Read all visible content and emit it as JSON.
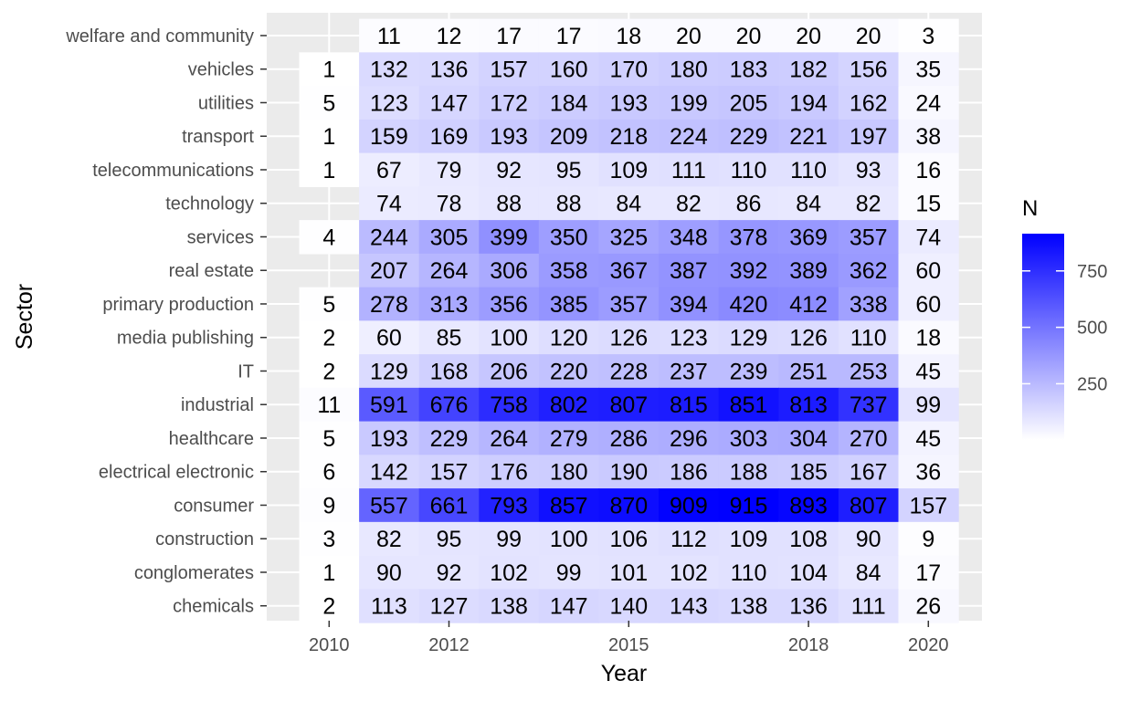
{
  "chart_data": {
    "type": "heatmap",
    "xlabel": "Year",
    "ylabel": "Sector",
    "x_ticks": [
      "2010",
      "2012",
      "2015",
      "2018",
      "2020"
    ],
    "x": [
      2010,
      2011,
      2012,
      2013,
      2014,
      2015,
      2016,
      2017,
      2018,
      2019,
      2020
    ],
    "categories": [
      "welfare and community",
      "vehicles",
      "utilities",
      "transport",
      "telecommunications",
      "technology",
      "services",
      "real estate",
      "primary production",
      "media publishing",
      "IT",
      "industrial",
      "healthcare",
      "electrical electronic",
      "consumer",
      "construction",
      "conglomerates",
      "chemicals"
    ],
    "values": [
      [
        null,
        11,
        12,
        17,
        17,
        18,
        20,
        20,
        20,
        20,
        3
      ],
      [
        1,
        132,
        136,
        157,
        160,
        170,
        180,
        183,
        182,
        156,
        35
      ],
      [
        5,
        123,
        147,
        172,
        184,
        193,
        199,
        205,
        194,
        162,
        24
      ],
      [
        1,
        159,
        169,
        193,
        209,
        218,
        224,
        229,
        221,
        197,
        38
      ],
      [
        1,
        67,
        79,
        92,
        95,
        109,
        111,
        110,
        110,
        93,
        16
      ],
      [
        null,
        74,
        78,
        88,
        88,
        84,
        82,
        86,
        84,
        82,
        15
      ],
      [
        4,
        244,
        305,
        399,
        350,
        325,
        348,
        378,
        369,
        357,
        74
      ],
      [
        null,
        207,
        264,
        306,
        358,
        367,
        387,
        392,
        389,
        362,
        60
      ],
      [
        5,
        278,
        313,
        356,
        385,
        357,
        394,
        420,
        412,
        338,
        60
      ],
      [
        2,
        60,
        85,
        100,
        120,
        126,
        123,
        129,
        126,
        110,
        18
      ],
      [
        2,
        129,
        168,
        206,
        220,
        228,
        237,
        239,
        251,
        253,
        45
      ],
      [
        11,
        591,
        676,
        758,
        802,
        807,
        815,
        851,
        813,
        737,
        99
      ],
      [
        5,
        193,
        229,
        264,
        279,
        286,
        296,
        303,
        304,
        270,
        45
      ],
      [
        6,
        142,
        157,
        176,
        180,
        190,
        186,
        188,
        185,
        167,
        36
      ],
      [
        9,
        557,
        661,
        793,
        857,
        870,
        909,
        915,
        893,
        807,
        157
      ],
      [
        3,
        82,
        95,
        99,
        100,
        106,
        112,
        109,
        108,
        90,
        9
      ],
      [
        1,
        90,
        92,
        102,
        99,
        101,
        102,
        110,
        104,
        84,
        17
      ],
      [
        2,
        113,
        127,
        138,
        147,
        140,
        143,
        138,
        136,
        111,
        26
      ]
    ],
    "legend": {
      "title": "N",
      "ticks": [
        250,
        500,
        750
      ],
      "low_color": "#ffffff",
      "high_color": "#0000ff",
      "range": [
        1,
        915
      ],
      "placement": "right"
    },
    "panel_background": "#ebebeb",
    "grid": true
  }
}
